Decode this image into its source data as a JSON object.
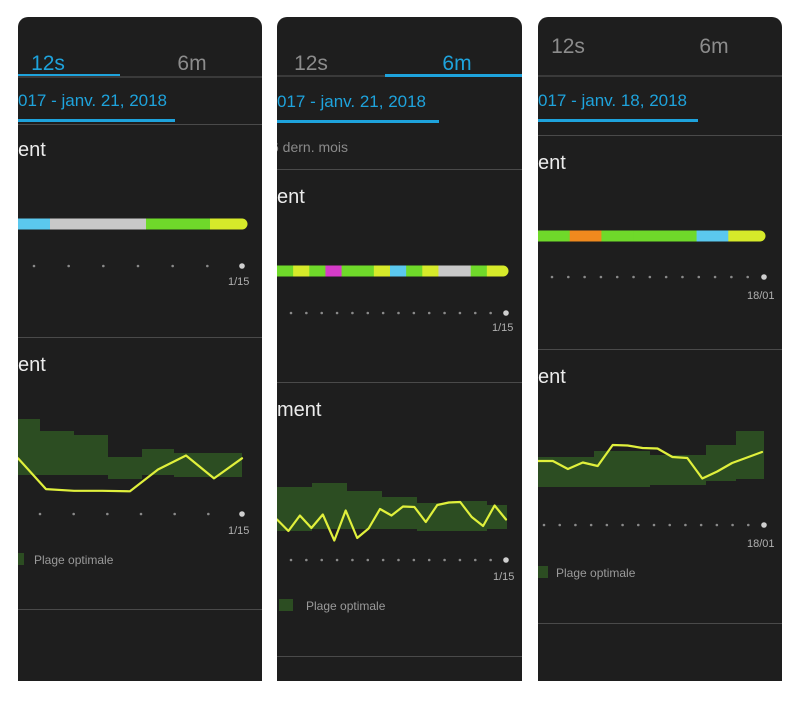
{
  "panels": [
    {
      "tabs": [
        {
          "label": "12s",
          "active": true
        },
        {
          "label": "6m",
          "active": false
        }
      ],
      "date_range": "017 - janv. 21, 2018",
      "section1_title": "ent",
      "section1_axis_end": "1/15",
      "section2_title": "ent",
      "section2_axis_end": "1/15",
      "legend_label": "Plage optimale",
      "status_bar_colors": [
        "#5bc8ee",
        "#c8c8c8",
        "#c8c8c8",
        "#c8c8c8",
        "#6fd92a",
        "#6fd92a",
        "#d6ea2a"
      ],
      "trend_values": [
        0.62,
        0.07,
        0.04,
        0.04,
        0.03,
        0.42,
        0.67,
        0.26,
        0.62
      ]
    },
    {
      "tabs": [
        {
          "label": "12s",
          "active": false
        },
        {
          "label": "6m",
          "active": true
        }
      ],
      "date_range": "017 - janv. 21, 2018",
      "subtext": "6 dern. mois",
      "section1_title": "ent",
      "section1_axis_end": "1/15",
      "section2_title": "ment",
      "section2_axis_end": "1/15",
      "legend_label": "Plage optimale",
      "status_bar_colors": [
        "#6fd92a",
        "#d6ea2a",
        "#6fd92a",
        "#d63cc8",
        "#6fd92a",
        "#6fd92a",
        "#d6ea2a",
        "#5bc8ee",
        "#6fd92a",
        "#d6ea2a",
        "#c8c8c8",
        "#c8c8c8",
        "#6fd92a",
        "#d6ea2a"
      ],
      "trend_values": [
        0.47,
        0.24,
        0.55,
        0.3,
        0.57,
        0.05,
        0.65,
        0.1,
        0.29,
        0.68,
        0.55,
        0.73,
        0.72,
        0.42,
        0.76,
        0.81,
        0.82,
        0.52,
        0.34,
        0.75,
        0.47
      ]
    },
    {
      "tabs": [
        {
          "label": "12s",
          "active": false
        },
        {
          "label": "6m",
          "active": false
        }
      ],
      "date_range": "017 - janv. 18, 2018",
      "section1_title": "ent",
      "section1_axis_end": "18/01",
      "section2_title": "ent",
      "section2_axis_end": "18/01",
      "legend_label": "Plage optimale",
      "status_bar_colors": [
        "#6fd92a",
        "#f0891e",
        "#6fd92a",
        "#6fd92a",
        "#6fd92a",
        "#5bc8ee",
        "#d6ea2a"
      ],
      "trend_values": [
        0.6,
        0.6,
        0.44,
        0.57,
        0.5,
        0.92,
        0.91,
        0.86,
        0.85,
        0.68,
        0.66,
        0.25,
        0.39,
        0.56,
        0.67,
        0.78
      ]
    }
  ],
  "colors": {
    "accent": "#1ea3dc",
    "trend_line": "#e0f03c",
    "optimal_band": "#2c4d22",
    "panel_background": "#1e1e1e"
  }
}
